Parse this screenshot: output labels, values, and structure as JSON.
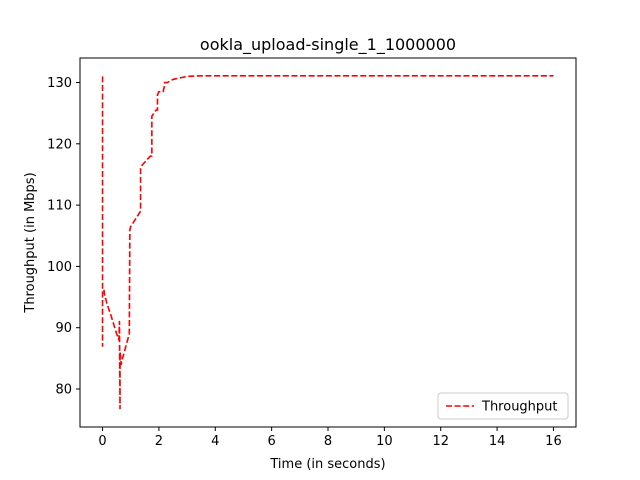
{
  "chart_data": {
    "type": "line",
    "title": "ookla_upload-single_1_1000000",
    "xlabel": "Time (in seconds)",
    "ylabel": "Throughput (in Mbps)",
    "xlim": [
      -0.8,
      16.8
    ],
    "ylim": [
      73.8,
      134.0
    ],
    "xticks": [
      0,
      2,
      4,
      6,
      8,
      10,
      12,
      14,
      16
    ],
    "yticks": [
      80,
      90,
      100,
      110,
      120,
      130
    ],
    "grid": false,
    "legend": {
      "placement": "lower-right",
      "entries": [
        "Throughput"
      ]
    },
    "series": [
      {
        "name": "Throughput",
        "color": "#ff0000",
        "style": "dashed",
        "x": [
          0.0,
          0.0,
          0.0,
          0.05,
          0.08,
          0.1,
          0.15,
          0.3,
          0.5,
          0.58,
          0.6,
          0.62,
          0.62,
          0.65,
          0.66,
          0.68,
          0.8,
          0.95,
          0.97,
          1.0,
          1.35,
          1.35,
          1.4,
          1.7,
          1.75,
          1.75,
          1.9,
          1.95,
          1.95,
          2.0,
          2.15,
          2.2,
          2.2,
          2.3,
          2.5,
          2.6,
          2.8,
          3.0,
          3.5,
          4.0,
          6.0,
          8.0,
          10.0,
          12.0,
          14.0,
          16.0
        ],
        "y": [
          131.0,
          87.0,
          96.0,
          96.2,
          95.0,
          95.0,
          94.0,
          92.0,
          89.0,
          88.0,
          91.0,
          76.8,
          86.0,
          85.0,
          84.0,
          84.5,
          86.5,
          89.0,
          106.0,
          106.5,
          109.0,
          116.0,
          116.5,
          118.0,
          118.0,
          124.5,
          125.5,
          125.5,
          128.0,
          128.5,
          128.5,
          129.5,
          130.0,
          130.0,
          130.5,
          130.6,
          130.8,
          131.0,
          131.1,
          131.1,
          131.1,
          131.1,
          131.1,
          131.1,
          131.1,
          131.1
        ]
      }
    ]
  }
}
